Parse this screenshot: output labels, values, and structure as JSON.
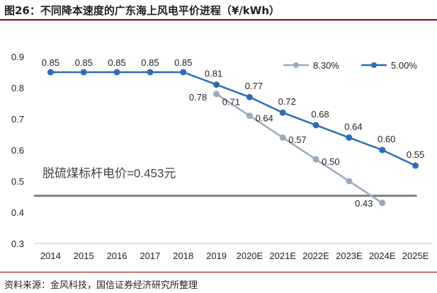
{
  "title": "图26：不同降本速度的广东海上风电平价进程（¥/kWh）",
  "source": "资料来源：金风科技，国信证券经济研究所整理",
  "chart_data": {
    "type": "line",
    "title": "图26：不同降本速度的广东海上风电平价进程（¥/kWh）",
    "xlabel": "",
    "ylabel": "",
    "ylim": [
      0.3,
      0.9
    ],
    "yticks": [
      "0.3",
      "0.4",
      "0.5",
      "0.6",
      "0.7",
      "0.8",
      "0.9"
    ],
    "categories": [
      "2014",
      "2015",
      "2016",
      "2017",
      "2018",
      "2019",
      "2020E",
      "2021E",
      "2022E",
      "2023E",
      "2024E",
      "2025E"
    ],
    "grid": false,
    "legend_position": "top-right",
    "series": [
      {
        "name": "8.30%",
        "color": "#9aaabb",
        "values": [
          null,
          null,
          null,
          null,
          null,
          0.78,
          0.71,
          0.64,
          0.57,
          0.5,
          0.43,
          null
        ],
        "labels": [
          null,
          null,
          null,
          null,
          null,
          "0.78",
          "0.71",
          "0.64",
          "0.57",
          "0.50",
          "0.43",
          null
        ]
      },
      {
        "name": "5.00%",
        "color": "#2e6db4",
        "values": [
          0.85,
          0.85,
          0.85,
          0.85,
          0.85,
          0.81,
          0.77,
          0.72,
          0.68,
          0.64,
          0.6,
          0.55
        ],
        "labels": [
          "0.85",
          "0.85",
          "0.85",
          "0.85",
          "0.85",
          "0.81",
          "0.77",
          "0.72",
          "0.68",
          "0.64",
          "0.60",
          "0.55"
        ]
      }
    ],
    "reference_line": {
      "value": 0.453,
      "label": "脱硫煤标杆电价=0.453元",
      "color": "#7f7f7f"
    }
  }
}
